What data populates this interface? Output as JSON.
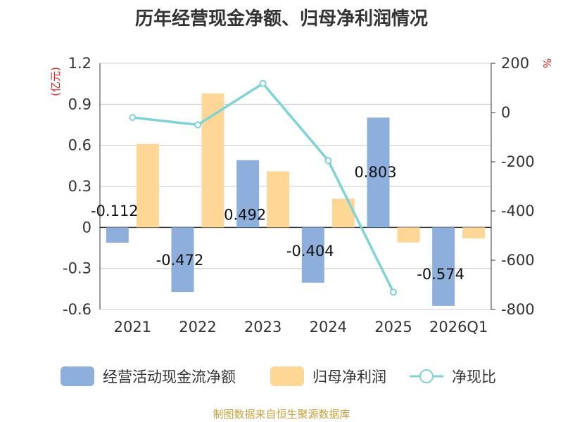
{
  "chart_data": {
    "type": "bar",
    "title": "历年经营现金净额、归母净利润情况",
    "categories": [
      "2021",
      "2022",
      "2023",
      "2024",
      "2025",
      "2026Q1"
    ],
    "left_axis": {
      "unit": "(亿元)",
      "ylim": [
        -0.6,
        1.2
      ],
      "ticks": [
        "1.2",
        "0.9",
        "0.6",
        "0.3",
        "0",
        "-0.3",
        "-0.6"
      ]
    },
    "right_axis": {
      "unit": "%",
      "ylim": [
        -800,
        200
      ],
      "ticks": [
        "200",
        "0",
        "-200",
        "-400",
        "-600",
        "-800"
      ]
    },
    "grid": true,
    "legend_position": "bottom",
    "series": [
      {
        "name": "经营活动现金流净额",
        "type": "bar",
        "axis": "left",
        "color": "#8eaedb",
        "values": [
          -0.112,
          -0.472,
          0.492,
          -0.404,
          0.803,
          -0.574
        ],
        "labels": [
          "-0.112",
          "-0.472",
          "0.492",
          "-0.404",
          "0.803",
          "-0.574"
        ]
      },
      {
        "name": "归母净利润",
        "type": "bar",
        "axis": "left",
        "color": "#fed696",
        "values": [
          0.61,
          0.98,
          0.41,
          0.21,
          -0.11,
          -0.08
        ]
      },
      {
        "name": "净现比",
        "type": "line",
        "axis": "right",
        "color": "#7fd3d7",
        "values": [
          -20,
          -50,
          118,
          -195,
          -730,
          null
        ]
      }
    ]
  },
  "footer": {
    "source": "制图数据来自恒生聚源数据库"
  }
}
